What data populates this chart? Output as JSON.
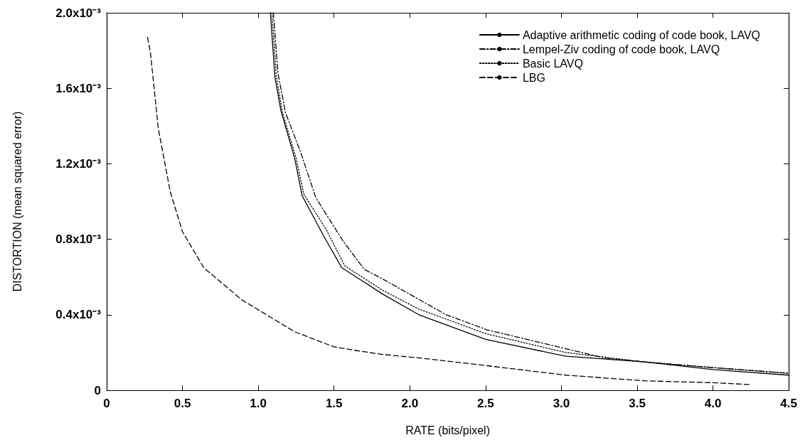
{
  "chart_data": {
    "type": "line",
    "xlabel": "RATE (bits/pixel)",
    "ylabel": "DISTORTION (mean squared error)",
    "xlim": [
      0,
      4.5
    ],
    "ylim": [
      0,
      0.002
    ],
    "xticks": [
      0,
      0.5,
      {
        "value": 1,
        "label": "1.0"
      },
      1.5,
      {
        "value": 2,
        "label": "2.0"
      },
      2.5,
      {
        "value": 3,
        "label": "3.0"
      },
      3.5,
      {
        "value": 4,
        "label": "4.0"
      },
      4.5
    ],
    "yticks": [
      0,
      {
        "value": 0.0004,
        "label": "0.4x10⁻³"
      },
      {
        "value": 0.0008,
        "label": "0.8x10⁻³"
      },
      {
        "value": 0.0012,
        "label": "1.2x10⁻³"
      },
      {
        "value": 0.0016,
        "label": "1.6x10⁻³"
      },
      {
        "value": 0.002,
        "label": "2.0x10⁻³"
      }
    ],
    "grid": false,
    "legend": "top right",
    "marker": "none",
    "series": [
      {
        "name": "Adaptive arithmetic coding of code book, LAVQ",
        "color": "#000000",
        "line_style": "solid",
        "x": [
          1.08,
          1.11,
          1.15,
          1.24,
          1.29,
          1.43,
          1.55,
          1.82,
          2.06,
          2.5,
          3.03,
          3.55,
          4.0,
          4.5
        ],
        "values": [
          0.002,
          0.00166,
          0.00148,
          0.00123,
          0.00103,
          0.00082,
          0.00065,
          0.00051,
          0.0004,
          0.00027,
          0.00018,
          0.00015,
          0.00011,
          8e-05
        ]
      },
      {
        "name": "Lempel-Ziv coding of code book, LAVQ",
        "color": "#000000",
        "line_style": "dashdot",
        "x": [
          1.1,
          1.13,
          1.18,
          1.28,
          1.38,
          1.56,
          1.7,
          1.82,
          2.24,
          2.51,
          3.03,
          3.29,
          3.55,
          4.0,
          4.5
        ],
        "values": [
          0.002,
          0.00168,
          0.00147,
          0.00126,
          0.00102,
          0.00079,
          0.00064,
          0.00059,
          0.0004,
          0.00032,
          0.00022,
          0.00017,
          0.00015,
          0.00012,
          9e-05
        ]
      },
      {
        "name": "Basic LAVQ",
        "color": "#000000",
        "line_style": "dotted",
        "x": [
          1.09,
          1.12,
          1.16,
          1.25,
          1.3,
          1.45,
          1.57,
          1.82,
          2.06,
          2.5,
          3.03,
          3.55,
          4.0,
          4.5
        ],
        "values": [
          0.002,
          0.00166,
          0.00147,
          0.00123,
          0.00104,
          0.00085,
          0.00066,
          0.00053,
          0.00043,
          0.0003,
          0.0002,
          0.00015,
          0.00012,
          9e-05
        ]
      },
      {
        "name": "LBG",
        "color": "#000000",
        "line_style": "dashed",
        "x": [
          0.27,
          0.29,
          0.34,
          0.42,
          0.5,
          0.64,
          0.89,
          1.24,
          1.5,
          1.65,
          1.82,
          2.08,
          2.51,
          3.03,
          3.55,
          4.0,
          4.25
        ],
        "values": [
          0.00187,
          0.00178,
          0.00139,
          0.00105,
          0.00084,
          0.00065,
          0.00048,
          0.00031,
          0.00023,
          0.00021,
          0.00019,
          0.00017,
          0.00013,
          8e-05,
          5e-05,
          4e-05,
          3e-05
        ]
      }
    ]
  }
}
